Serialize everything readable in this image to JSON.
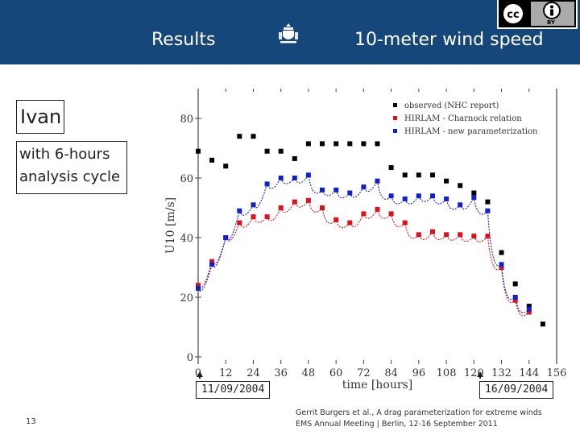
{
  "slide": {
    "title_left": "Results",
    "title_right": "10-meter wind speed",
    "label_main": "Ivan",
    "label_sub_1": "with 6-hours",
    "label_sub_2": "analysis cycle",
    "date_start": "11/09/2004",
    "date_end": "16/09/2004",
    "page_number": "13",
    "footer_line1": "Gerrit Burgers et al., A drag parameterization for extreme winds",
    "footer_line2": "EMS Annual Meeting | Berlin, 12-16 September 2011",
    "cc_label": "BY",
    "colors": {
      "header": "#15477a",
      "observed": "#000000",
      "charnock": "#e0101a",
      "new_param": "#1020d0"
    }
  },
  "chart_data": {
    "type": "scatter",
    "xlabel": "time [hours]",
    "ylabel": "U10 [m/s]",
    "xlim": [
      0,
      156
    ],
    "ylim": [
      0,
      85
    ],
    "xticks": [
      0,
      12,
      24,
      36,
      48,
      60,
      72,
      84,
      96,
      108,
      120,
      132,
      144,
      156
    ],
    "yticks": [
      0,
      20,
      40,
      60,
      80
    ],
    "legend": [
      "observed (NHC report)",
      "HIRLAM - Charnock relation",
      "HIRLAM - new parameterization"
    ],
    "series": [
      {
        "name": "observed (NHC report)",
        "x": [
          0,
          6,
          12,
          18,
          24,
          30,
          36,
          42,
          48,
          54,
          60,
          66,
          72,
          78,
          84,
          90,
          96,
          102,
          108,
          114,
          120,
          126,
          132,
          138,
          144,
          150
        ],
        "y": [
          69,
          66,
          64,
          74,
          74,
          69,
          69,
          66.5,
          71.5,
          71.5,
          71.5,
          71.5,
          71.5,
          71.5,
          63.5,
          61,
          61,
          61,
          59,
          57.5,
          55,
          52,
          35,
          24.5,
          17,
          11
        ]
      },
      {
        "name": "HIRLAM - Charnock relation",
        "x": [
          0,
          6,
          12,
          18,
          24,
          30,
          36,
          42,
          48,
          54,
          60,
          66,
          72,
          78,
          84,
          90,
          96,
          102,
          108,
          114,
          120,
          126,
          132,
          138,
          144
        ],
        "y": [
          24,
          32,
          40,
          45,
          47,
          47,
          50,
          52,
          52.5,
          50,
          46,
          45,
          48,
          49.5,
          48,
          45,
          41,
          42,
          41,
          41,
          40.5,
          40.5,
          30,
          19,
          15
        ]
      },
      {
        "name": "HIRLAM - new parameterization",
        "x": [
          0,
          6,
          12,
          18,
          24,
          30,
          36,
          42,
          48,
          54,
          60,
          66,
          72,
          78,
          84,
          90,
          96,
          102,
          108,
          114,
          120,
          126,
          132,
          138,
          144
        ],
        "y": [
          23,
          31,
          40,
          49,
          51,
          58,
          60,
          60,
          61,
          56,
          56,
          55,
          57,
          59,
          54,
          53,
          54,
          54,
          53,
          51,
          53.5,
          49,
          31,
          20,
          16
        ]
      }
    ]
  }
}
